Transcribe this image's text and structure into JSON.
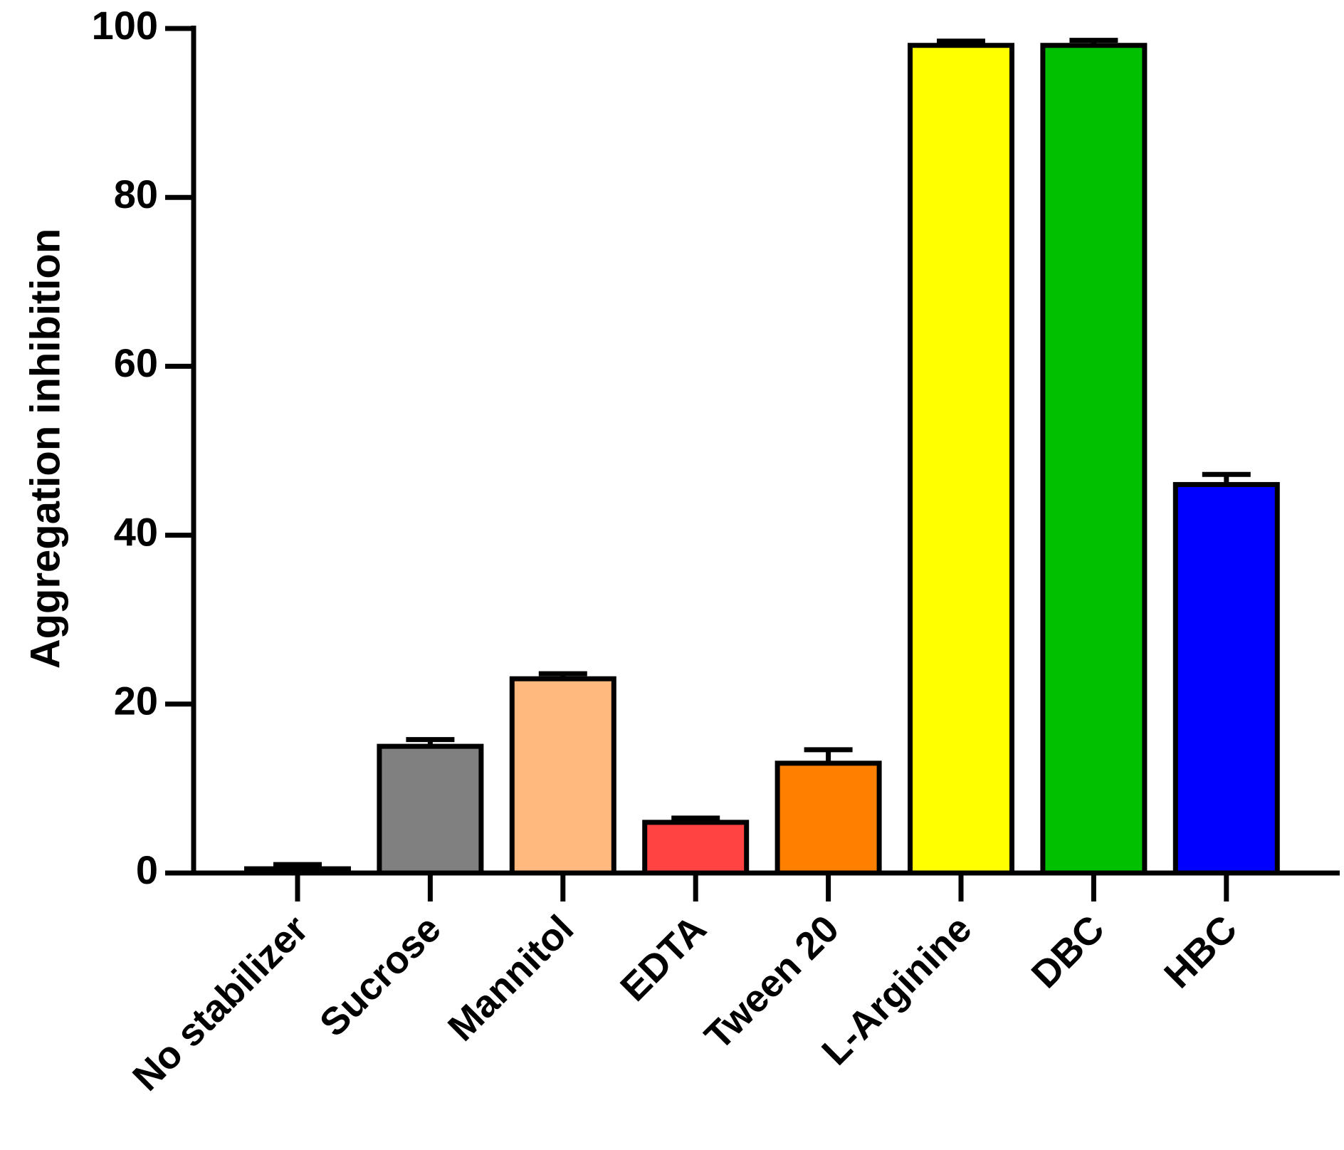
{
  "chart_data": {
    "type": "bar",
    "y_label": "Aggregation inhibition",
    "categories": [
      "No stabilizer",
      "Sucrose",
      "Mannitol",
      "EDTA",
      "Tween 20",
      "L-Arginine",
      "DBC",
      "HBC"
    ],
    "values": [
      0.5,
      15,
      23,
      6,
      13,
      98,
      98,
      46
    ],
    "errors": [
      0.5,
      0.8,
      0.6,
      0.5,
      1.6,
      0.5,
      0.6,
      1.2
    ],
    "colors": [
      "#ffffff",
      "#808080",
      "#ffb87d",
      "#ff4242",
      "#ff8000",
      "#ffff00",
      "#00c000",
      "#0000ff"
    ],
    "ylim": [
      0,
      100
    ],
    "yticks": [
      0,
      20,
      40,
      60,
      80,
      100
    ]
  }
}
